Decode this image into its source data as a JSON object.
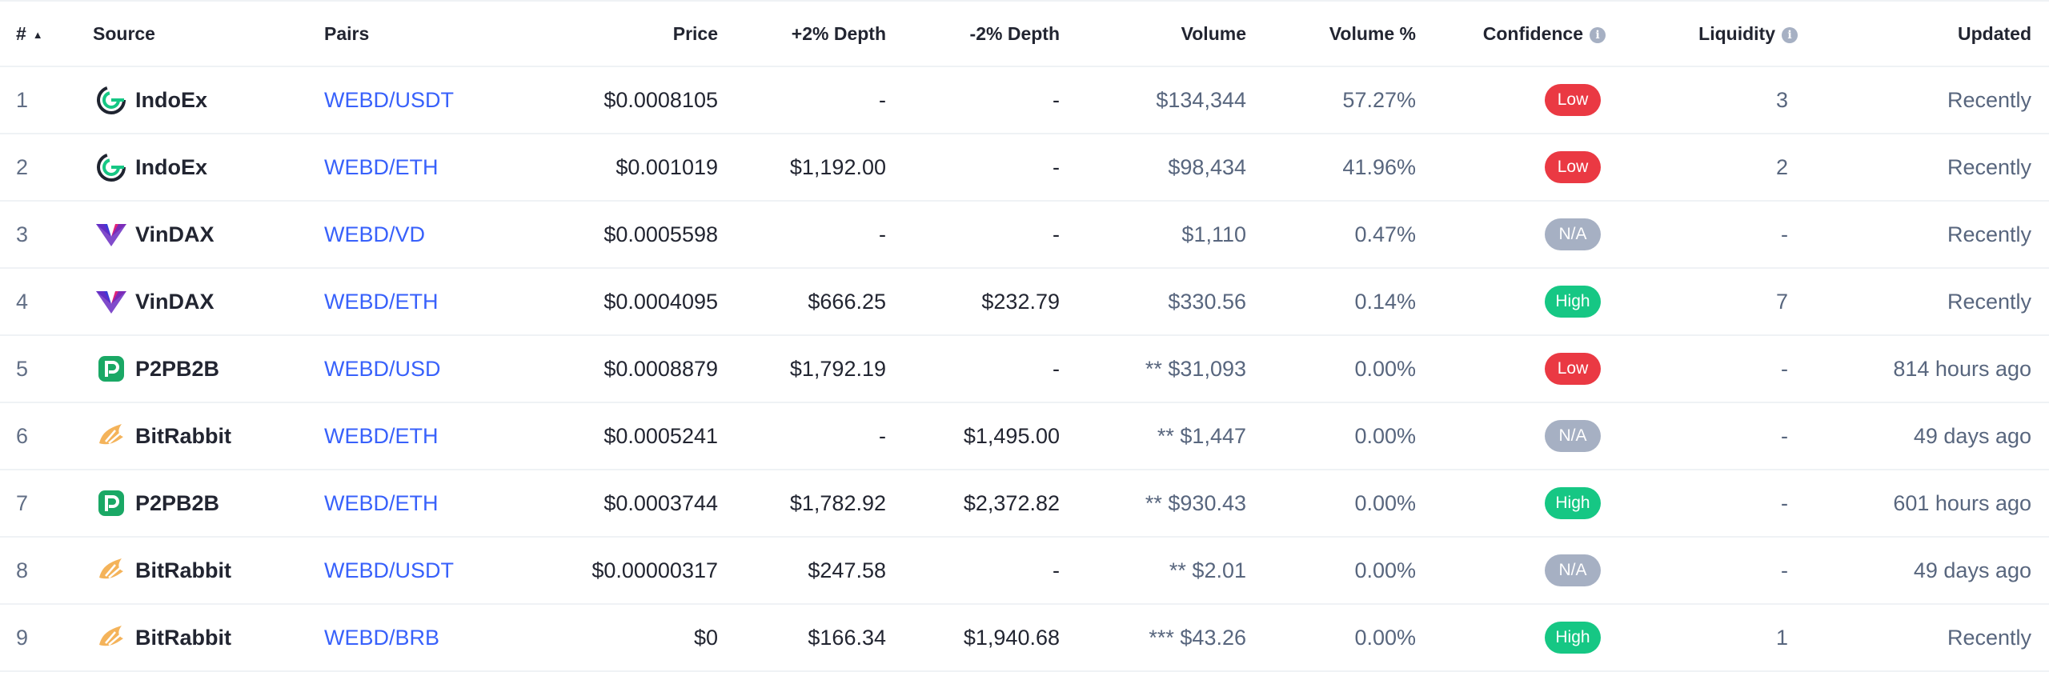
{
  "headers": {
    "rank": "#",
    "source": "Source",
    "pairs": "Pairs",
    "price": "Price",
    "depth_plus": "+2% Depth",
    "depth_minus": "-2% Depth",
    "volume": "Volume",
    "volume_pct": "Volume %",
    "confidence": "Confidence",
    "liquidity": "Liquidity",
    "updated": "Updated"
  },
  "icons": {
    "sort": "sort-ascending-icon",
    "info": "info-icon"
  },
  "colors": {
    "link": "#3861fb",
    "low": "#ea3943",
    "high": "#16c784",
    "na": "#a6b0c3",
    "indoex_green": "#16c784",
    "vindax_blue": "#3b3bd8",
    "vindax_pink": "#e0247a",
    "p2pb2b_green": "#1aa865",
    "bitrabbit_orange": "#f4b35a"
  },
  "rows": [
    {
      "rank": "1",
      "source": "IndoEx",
      "logo": "indoex-logo",
      "pair": "WEBD/USDT",
      "price": "$0.0008105",
      "depth_plus": "-",
      "depth_minus": "-",
      "volume": "$134,344",
      "volume_pct": "57.27%",
      "confidence": "Low",
      "confidence_level": "low",
      "liquidity": "3",
      "updated": "Recently"
    },
    {
      "rank": "2",
      "source": "IndoEx",
      "logo": "indoex-logo",
      "pair": "WEBD/ETH",
      "price": "$0.001019",
      "depth_plus": "$1,192.00",
      "depth_minus": "-",
      "volume": "$98,434",
      "volume_pct": "41.96%",
      "confidence": "Low",
      "confidence_level": "low",
      "liquidity": "2",
      "updated": "Recently"
    },
    {
      "rank": "3",
      "source": "VinDAX",
      "logo": "vindax-logo",
      "pair": "WEBD/VD",
      "price": "$0.0005598",
      "depth_plus": "-",
      "depth_minus": "-",
      "volume": "$1,110",
      "volume_pct": "0.47%",
      "confidence": "N/A",
      "confidence_level": "na",
      "liquidity": "-",
      "updated": "Recently"
    },
    {
      "rank": "4",
      "source": "VinDAX",
      "logo": "vindax-logo",
      "pair": "WEBD/ETH",
      "price": "$0.0004095",
      "depth_plus": "$666.25",
      "depth_minus": "$232.79",
      "volume": "$330.56",
      "volume_pct": "0.14%",
      "confidence": "High",
      "confidence_level": "high",
      "liquidity": "7",
      "updated": "Recently"
    },
    {
      "rank": "5",
      "source": "P2PB2B",
      "logo": "p2pb2b-logo",
      "pair": "WEBD/USD",
      "price": "$0.0008879",
      "depth_plus": "$1,792.19",
      "depth_minus": "-",
      "volume": "** $31,093",
      "volume_pct": "0.00%",
      "confidence": "Low",
      "confidence_level": "low",
      "liquidity": "-",
      "updated": "814 hours ago"
    },
    {
      "rank": "6",
      "source": "BitRabbit",
      "logo": "bitrabbit-logo",
      "pair": "WEBD/ETH",
      "price": "$0.0005241",
      "depth_plus": "-",
      "depth_minus": "$1,495.00",
      "volume": "** $1,447",
      "volume_pct": "0.00%",
      "confidence": "N/A",
      "confidence_level": "na",
      "liquidity": "-",
      "updated": "49 days ago"
    },
    {
      "rank": "7",
      "source": "P2PB2B",
      "logo": "p2pb2b-logo",
      "pair": "WEBD/ETH",
      "price": "$0.0003744",
      "depth_plus": "$1,782.92",
      "depth_minus": "$2,372.82",
      "volume": "** $930.43",
      "volume_pct": "0.00%",
      "confidence": "High",
      "confidence_level": "high",
      "liquidity": "-",
      "updated": "601 hours ago"
    },
    {
      "rank": "8",
      "source": "BitRabbit",
      "logo": "bitrabbit-logo",
      "pair": "WEBD/USDT",
      "price": "$0.00000317",
      "depth_plus": "$247.58",
      "depth_minus": "-",
      "volume": "** $2.01",
      "volume_pct": "0.00%",
      "confidence": "N/A",
      "confidence_level": "na",
      "liquidity": "-",
      "updated": "49 days ago"
    },
    {
      "rank": "9",
      "source": "BitRabbit",
      "logo": "bitrabbit-logo",
      "pair": "WEBD/BRB",
      "price": "$0",
      "depth_plus": "$166.34",
      "depth_minus": "$1,940.68",
      "volume": "*** $43.26",
      "volume_pct": "0.00%",
      "confidence": "High",
      "confidence_level": "high",
      "liquidity": "1",
      "updated": "Recently"
    }
  ]
}
